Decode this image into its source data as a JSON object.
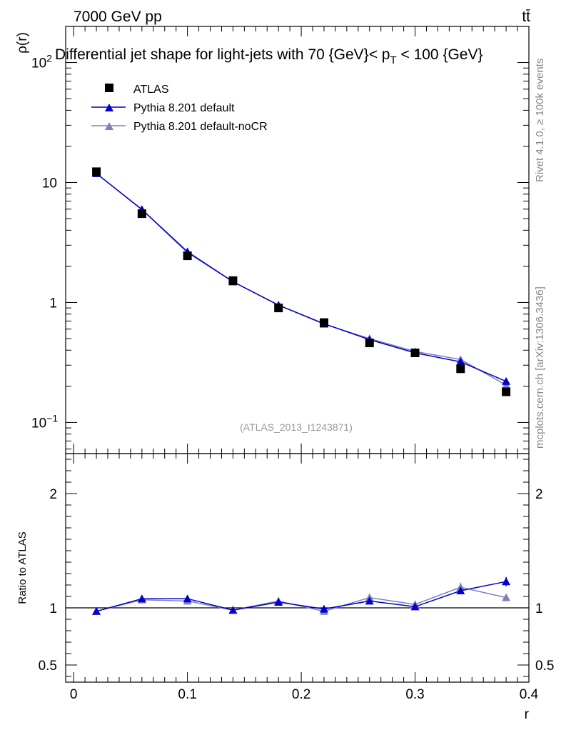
{
  "header": {
    "energy_label": "7000 GeV pp",
    "process_label": "tt̄",
    "title": "Differential jet shape for light-jets with 70 {GeV}< p",
    "title_sub": "T",
    "title_tail": " < 100 {GeV}",
    "analysis_id": "(ATLAS_2013_I1243871)",
    "side_rivet": "Rivet 4.1.0, ≥ 100k events",
    "side_mcplots": "mcplots.cern.ch [arXiv:1306.3436]"
  },
  "legend": {
    "items": [
      {
        "label": "ATLAS",
        "color": "#000000",
        "marker": "square"
      },
      {
        "label": "Pythia 8.201 default",
        "color": "#0000cc",
        "marker": "triangle"
      },
      {
        "label": "Pythia 8.201 default-noCR",
        "color": "#8080bb",
        "marker": "triangle"
      }
    ]
  },
  "chart_data": [
    {
      "type": "line",
      "panel": "main",
      "title": "Differential jet shape for light-jets with 70 {GeV}< pT < 100 {GeV}",
      "xlabel": "",
      "ylabel": "ρ(r)",
      "yscale": "log",
      "xlim": [
        -0.007,
        0.4
      ],
      "ylim": [
        0.055,
        200
      ],
      "x_ticks": [
        "0",
        "0.1",
        "0.2",
        "0.3",
        "0.4"
      ],
      "y_ticks": [
        {
          "value": 100,
          "base": "10",
          "exp": "2"
        },
        {
          "value": 10,
          "base": "10",
          "exp": ""
        },
        {
          "value": 1,
          "base": "1",
          "exp": ""
        },
        {
          "value": 0.1,
          "base": "10",
          "exp": "−1"
        }
      ],
      "x": [
        0.02,
        0.06,
        0.1,
        0.14,
        0.18,
        0.22,
        0.26,
        0.3,
        0.34,
        0.38
      ],
      "series": [
        {
          "name": "ATLAS",
          "color": "#000000",
          "marker": "square",
          "values": [
            12.3,
            5.5,
            2.45,
            1.52,
            0.9,
            0.68,
            0.46,
            0.38,
            0.28,
            0.18
          ]
        },
        {
          "name": "Pythia 8.201 default",
          "color": "#0000cc",
          "marker": "triangle",
          "values": [
            11.9,
            5.95,
            2.65,
            1.49,
            0.95,
            0.665,
            0.49,
            0.38,
            0.32,
            0.22
          ]
        },
        {
          "name": "Pythia 8.201 default-noCR",
          "color": "#8080bb",
          "marker": "triangle",
          "values": [
            11.9,
            5.95,
            2.6,
            1.49,
            0.95,
            0.66,
            0.5,
            0.39,
            0.335,
            0.205
          ]
        }
      ]
    },
    {
      "type": "line",
      "panel": "ratio",
      "xlabel": "r",
      "ylabel": "Ratio to ATLAS",
      "xlim": [
        -0.007,
        0.4
      ],
      "ylim": [
        0.35,
        2.35
      ],
      "x_ticks": [
        "0",
        "0.1",
        "0.2",
        "0.3",
        "0.4"
      ],
      "y_ticks": [
        {
          "value": 2,
          "label": "2"
        },
        {
          "value": 1,
          "label": "1"
        },
        {
          "value": 0.5,
          "label": "0.5"
        }
      ],
      "reference": 1,
      "x": [
        0.02,
        0.06,
        0.1,
        0.14,
        0.18,
        0.22,
        0.26,
        0.3,
        0.34,
        0.38
      ],
      "series": [
        {
          "name": "Pythia 8.201 default",
          "color": "#0000cc",
          "marker": "triangle",
          "values": [
            0.97,
            1.08,
            1.08,
            0.98,
            1.05,
            0.99,
            1.06,
            1.01,
            1.15,
            1.23
          ],
          "errors": [
            0.01,
            0.01,
            0.03,
            0.01,
            0.03,
            0.03,
            0.03,
            0.03,
            0.03,
            0.04
          ]
        },
        {
          "name": "Pythia 8.201 default-noCR",
          "color": "#8080bb",
          "marker": "triangle",
          "values": [
            0.97,
            1.07,
            1.06,
            0.98,
            1.06,
            0.97,
            1.09,
            1.03,
            1.18,
            1.09
          ],
          "errors": [
            0.01,
            0.01,
            0.02,
            0.01,
            0.03,
            0.03,
            0.03,
            0.03,
            0.04,
            0.03
          ]
        }
      ]
    }
  ]
}
